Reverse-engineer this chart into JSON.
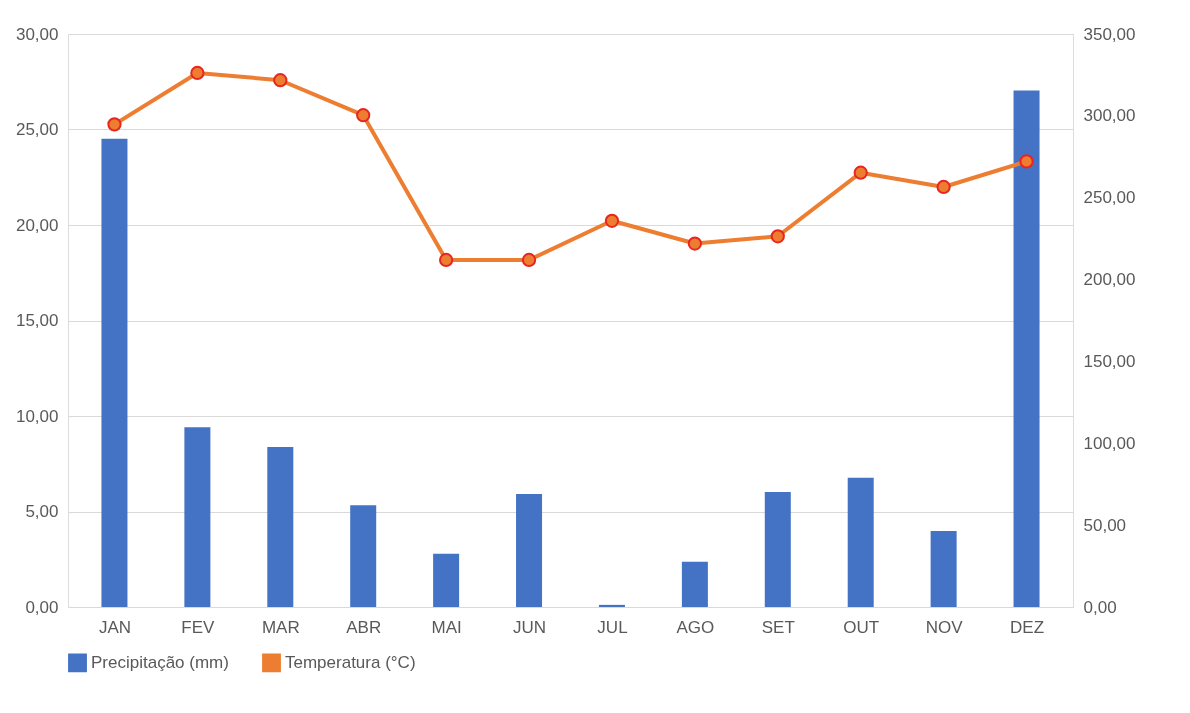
{
  "chart_data": {
    "type": "bar",
    "categories": [
      "JAN",
      "FEV",
      "MAR",
      "ABR",
      "MAI",
      "JUN",
      "JUL",
      "AGO",
      "SET",
      "OUT",
      "NOV",
      "DEZ"
    ],
    "series": [
      {
        "name": "Precipitação (mm)",
        "axis": "y2",
        "color": "#4472c4",
        "values": [
          286.0,
          109.8,
          97.8,
          62.1,
          32.6,
          69.0,
          1.3,
          27.6,
          70.3,
          79.0,
          46.4,
          315.5
        ]
      },
      {
        "name": "Temperatura (°C)",
        "type": "line",
        "color": "#ed7d31",
        "marker": "circle",
        "values": [
          25.27,
          27.96,
          27.58,
          25.75,
          18.17,
          18.17,
          20.22,
          19.03,
          19.41,
          22.74,
          21.99,
          23.33
        ]
      }
    ],
    "ylim": [
      0,
      30
    ],
    "yticks": [
      {
        "value": 0,
        "label": "0,00"
      },
      {
        "value": 5,
        "label": "5,00"
      },
      {
        "value": 10,
        "label": "10,00"
      },
      {
        "value": 15,
        "label": "15,00"
      },
      {
        "value": 20,
        "label": "20,00"
      },
      {
        "value": 25,
        "label": "25,00"
      },
      {
        "value": 30,
        "label": "30,00"
      }
    ],
    "y2lim": [
      0,
      350
    ],
    "y2ticks": [
      {
        "value": 0,
        "label": "0,00"
      },
      {
        "value": 50,
        "label": "50,00"
      },
      {
        "value": 100,
        "label": "100,00"
      },
      {
        "value": 150,
        "label": "150,00"
      },
      {
        "value": 200,
        "label": "200,00"
      },
      {
        "value": 250,
        "label": "250,00"
      },
      {
        "value": 300,
        "label": "300,00"
      },
      {
        "value": 350,
        "label": "350,00"
      }
    ],
    "grid": "y",
    "legend": "bottom"
  }
}
